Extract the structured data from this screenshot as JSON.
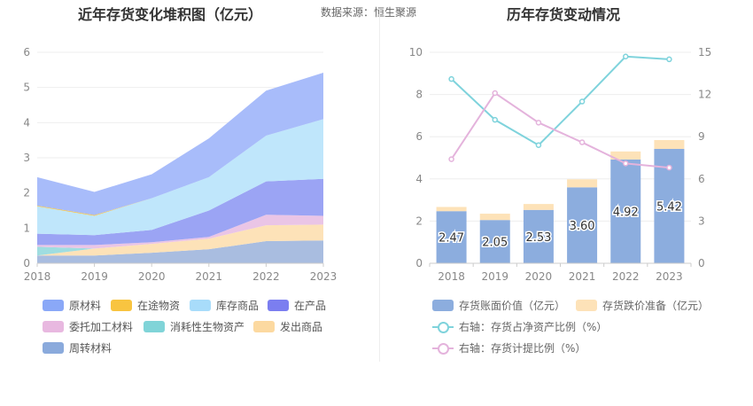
{
  "left": {
    "title": "近年存货变化堆积图（亿元）",
    "source": "数据来源：恒生聚源"
  },
  "right": {
    "title": "历年存货变动情况"
  },
  "legend_left": [
    {
      "label": "原材料",
      "color": "#8aa8f7"
    },
    {
      "label": "在途物资",
      "color": "#f8c440"
    },
    {
      "label": "库存商品",
      "color": "#a8dcfa"
    },
    {
      "label": "在产品",
      "color": "#7b7ef0"
    },
    {
      "label": "委托加工材料",
      "color": "#e8b8e0"
    },
    {
      "label": "消耗性生物资产",
      "color": "#80d4d8"
    },
    {
      "label": "发出商品",
      "color": "#fcd9a0"
    },
    {
      "label": "周转材料",
      "color": "#8aaadc"
    }
  ],
  "legend_right": [
    {
      "label": "存货账面价值（亿元）",
      "color": "#8cadde",
      "kind": "bar"
    },
    {
      "label": "存货跌价准备（亿元）",
      "color": "#fde2b8",
      "kind": "bar"
    },
    {
      "label": "右轴：存货占净资产比例（%）",
      "color": "#7fd3dc",
      "kind": "line"
    },
    {
      "label": "右轴：存货计提比例（%）",
      "color": "#e4b3dc",
      "kind": "line"
    }
  ],
  "chart_data": [
    {
      "type": "area",
      "stacked": true,
      "title": "近年存货变化堆积图（亿元）",
      "x": [
        "2018",
        "2019",
        "2020",
        "2021",
        "2022",
        "2023"
      ],
      "ylim": [
        0,
        6
      ],
      "yticks": [
        "0",
        "1",
        "2",
        "3",
        "4",
        "5",
        "6"
      ],
      "grid": true,
      "legend_position": "bottom",
      "series": [
        {
          "name": "周转材料",
          "color": "#a9bde0",
          "values": [
            0.22,
            0.22,
            0.3,
            0.4,
            0.63,
            0.65
          ]
        },
        {
          "name": "发出商品",
          "color": "#fde2b8",
          "values": [
            0.0,
            0.2,
            0.25,
            0.3,
            0.45,
            0.45
          ]
        },
        {
          "name": "消耗性生物资产",
          "color": "#9fdde0",
          "values": [
            0.25,
            0.0,
            0.0,
            0.0,
            0.0,
            0.0
          ]
        },
        {
          "name": "委托加工材料",
          "color": "#eac5e6",
          "values": [
            0.05,
            0.1,
            0.05,
            0.05,
            0.3,
            0.25
          ]
        },
        {
          "name": "在产品",
          "color": "#9ba4f4",
          "values": [
            0.32,
            0.28,
            0.35,
            0.75,
            0.95,
            1.05
          ]
        },
        {
          "name": "库存商品",
          "color": "#bfe6fb",
          "values": [
            0.78,
            0.55,
            0.9,
            0.95,
            1.3,
            1.7
          ]
        },
        {
          "name": "在途物资",
          "color": "#f8c440",
          "values": [
            0.02,
            0.02,
            0.0,
            0.0,
            0.0,
            0.0
          ]
        },
        {
          "name": "原材料",
          "color": "#a8bcfa",
          "values": [
            0.81,
            0.66,
            0.68,
            1.1,
            1.28,
            1.32
          ]
        }
      ]
    },
    {
      "type": "bar",
      "stacked": true,
      "title": "历年存货变动情况",
      "x": [
        "2018",
        "2019",
        "2020",
        "2021",
        "2022",
        "2023"
      ],
      "ylim_left": [
        0,
        10
      ],
      "yticks_left": [
        "0",
        "2",
        "4",
        "6",
        "8",
        "10"
      ],
      "ylim_right": [
        0,
        15
      ],
      "yticks_right": [
        "0",
        "3",
        "6",
        "9",
        "12",
        "15"
      ],
      "grid": true,
      "legend_position": "bottom",
      "bars": [
        {
          "name": "存货账面价值（亿元）",
          "color": "#8cadde",
          "values": [
            2.47,
            2.05,
            2.53,
            3.6,
            4.92,
            5.42
          ],
          "labels": [
            "2.47",
            "2.05",
            "2.53",
            "3.60",
            "4.92",
            "5.42"
          ]
        },
        {
          "name": "存货跌价准备（亿元）",
          "color": "#fde2b8",
          "values": [
            0.2,
            0.3,
            0.28,
            0.38,
            0.38,
            0.42
          ]
        }
      ],
      "lines": [
        {
          "name": "右轴：存货占净资产比例（%）",
          "color": "#7fd3dc",
          "axis": "right",
          "values": [
            13.1,
            10.2,
            8.4,
            11.5,
            14.7,
            14.5
          ]
        },
        {
          "name": "右轴：存货计提比例（%）",
          "color": "#e4b3dc",
          "axis": "right",
          "values": [
            7.4,
            12.1,
            10.0,
            8.6,
            7.1,
            6.8
          ]
        }
      ]
    }
  ]
}
